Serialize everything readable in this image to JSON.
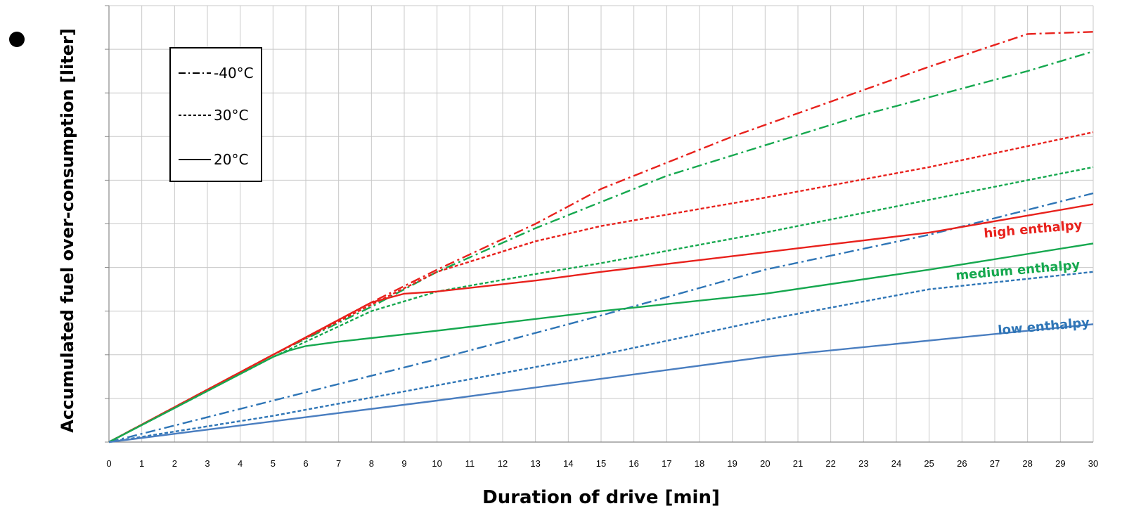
{
  "chart_data": {
    "type": "line",
    "xlabel": "Duration of drive [min]",
    "ylabel": "Accumulated fuel over-consumption [liter]",
    "x_ticks": [
      "0",
      "1",
      "2",
      "3",
      "4",
      "5",
      "6",
      "7",
      "8",
      "9",
      "10",
      "11",
      "12",
      "13",
      "14",
      "15",
      "16",
      "17",
      "18",
      "19",
      "20",
      "21",
      "22",
      "23",
      "24",
      "25",
      "26",
      "27",
      "28",
      "29",
      "30"
    ],
    "xlim": [
      0,
      30
    ],
    "ylim": [
      0,
      10
    ],
    "y_tick_labels_shown": false,
    "grid": true,
    "legend": {
      "placement": "top-left",
      "entries": [
        {
          "label": "-40°C",
          "dash": "dash-dot"
        },
        {
          "label": "30°C",
          "dash": "dashed"
        },
        {
          "label": "20°C",
          "dash": "solid"
        }
      ]
    },
    "group_labels": [
      {
        "text": "high enthalpy",
        "color": "#e8211c"
      },
      {
        "text": "medium enthalpy",
        "color": "#16a84f"
      },
      {
        "text": "low enthalpy",
        "color": "#2e75b6"
      }
    ],
    "series": [
      {
        "group": "high enthalpy",
        "temp": "-40°C",
        "dash": "dash-dot",
        "color": "#e8211c",
        "x": [
          0,
          5,
          8,
          10,
          13,
          15,
          19,
          22,
          25,
          28,
          30
        ],
        "y": [
          0,
          2.0,
          3.2,
          3.95,
          5.0,
          5.8,
          7.0,
          7.8,
          8.6,
          9.35,
          9.4
        ]
      },
      {
        "group": "medium enthalpy",
        "temp": "-40°C",
        "dash": "dash-dot",
        "color": "#16a84f",
        "x": [
          0,
          5,
          8,
          10,
          13,
          15,
          17,
          20,
          23,
          25,
          28,
          30
        ],
        "y": [
          0,
          2.0,
          3.1,
          3.9,
          4.9,
          5.5,
          6.1,
          6.8,
          7.5,
          7.9,
          8.5,
          8.95
        ]
      },
      {
        "group": "low enthalpy",
        "temp": "-40°C",
        "dash": "dash-dot",
        "color": "#2e75b6",
        "x": [
          0,
          5,
          10,
          15,
          20,
          25,
          30
        ],
        "y": [
          0,
          0.95,
          1.9,
          2.9,
          3.95,
          4.75,
          5.7
        ]
      },
      {
        "group": "high enthalpy",
        "temp": "30°C",
        "dash": "dashed",
        "color": "#e8211c",
        "x": [
          0,
          5,
          8,
          10,
          13,
          15,
          20,
          25,
          30
        ],
        "y": [
          0,
          2.0,
          3.15,
          3.9,
          4.6,
          4.95,
          5.6,
          6.3,
          7.1
        ]
      },
      {
        "group": "medium enthalpy",
        "temp": "30°C",
        "dash": "dashed",
        "color": "#16a84f",
        "x": [
          0,
          5,
          8,
          10,
          13,
          15,
          20,
          25,
          30
        ],
        "y": [
          0,
          1.95,
          3.0,
          3.45,
          3.85,
          4.1,
          4.8,
          5.55,
          6.3
        ]
      },
      {
        "group": "low enthalpy",
        "temp": "30°C",
        "dash": "dashed",
        "color": "#2e75b6",
        "x": [
          0,
          5,
          10,
          15,
          20,
          25,
          30
        ],
        "y": [
          0,
          0.6,
          1.3,
          2.0,
          2.8,
          3.5,
          3.9
        ]
      },
      {
        "group": "high enthalpy",
        "temp": "20°C",
        "dash": "solid",
        "color": "#e8211c",
        "x": [
          0,
          5,
          7,
          8,
          9,
          10,
          13,
          15,
          20,
          25,
          30
        ],
        "y": [
          0,
          2.0,
          2.8,
          3.2,
          3.4,
          3.45,
          3.7,
          3.9,
          4.35,
          4.8,
          5.45
        ]
      },
      {
        "group": "medium enthalpy",
        "temp": "20°C",
        "dash": "solid",
        "color": "#16a84f",
        "x": [
          0,
          5,
          5.5,
          6,
          7,
          10,
          15,
          20,
          25,
          30
        ],
        "y": [
          0,
          1.95,
          2.1,
          2.2,
          2.3,
          2.55,
          3.0,
          3.4,
          3.95,
          4.55
        ]
      },
      {
        "group": "low enthalpy",
        "temp": "20°C",
        "dash": "solid",
        "color": "#4a7ec0",
        "x": [
          0,
          10,
          20,
          30
        ],
        "y": [
          0,
          0.95,
          1.95,
          2.7
        ]
      }
    ]
  }
}
